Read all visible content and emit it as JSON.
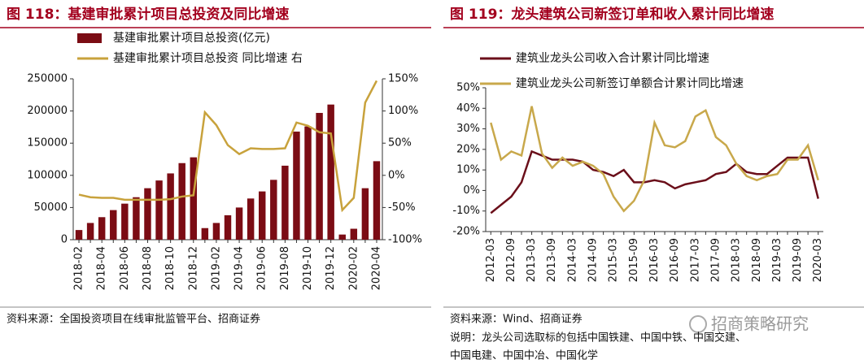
{
  "chart_data": [
    {
      "type": "bar",
      "title": "图 118：基建审批累计项目总投资及同比增速",
      "categories": [
        "2018-02",
        null,
        "2018-04",
        null,
        "2018-06",
        null,
        "2018-08",
        null,
        "2018-10",
        null,
        "2018-12",
        null,
        "2019-02",
        null,
        "2019-04",
        null,
        "2019-06",
        null,
        "2019-08",
        null,
        "2019-10",
        null,
        "2019-12",
        null,
        "2020-02",
        null,
        "2020-04"
      ],
      "series": [
        {
          "name": "基建审批累计项目总投资(亿元)",
          "type": "bar",
          "color": "#7b0c14",
          "values": [
            15000,
            26000,
            35000,
            46000,
            56000,
            66000,
            80000,
            92000,
            103000,
            119000,
            128000,
            18000,
            26000,
            38000,
            50000,
            64000,
            75000,
            93000,
            115000,
            168000,
            176000,
            197000,
            210000,
            8000,
            17000,
            80000,
            122000
          ]
        },
        {
          "name": "基建审批累计项目总投资 同比增速 右",
          "type": "line",
          "axis": "y2",
          "color": "#c8a23c",
          "values": [
            -30,
            -34,
            -35,
            -35,
            -38,
            -38,
            -38,
            -38,
            -37,
            -33,
            -31,
            98,
            78,
            47,
            33,
            42,
            41,
            41,
            42,
            82,
            77,
            67,
            65,
            -54,
            -35,
            113,
            147
          ]
        }
      ],
      "ylim": [
        0,
        250000
      ],
      "yticks": [
        0,
        50000,
        100000,
        150000,
        200000,
        250000
      ],
      "y2lim": [
        -100,
        150
      ],
      "y2ticks": [
        {
          "value": -100,
          "label": "-100%"
        },
        {
          "value": -50,
          "label": "-50%"
        },
        {
          "value": 0,
          "label": "0%"
        },
        {
          "value": 50,
          "label": "50%"
        },
        {
          "value": 100,
          "label": "100%"
        },
        {
          "value": 150,
          "label": "150%"
        }
      ],
      "source": "资料来源：全国投资项目在线审批监管平台、招商证券"
    },
    {
      "type": "line",
      "title": "图 119：龙头建筑公司新签订单和收入累计同比增速",
      "categories": [
        "2012-03",
        null,
        "2012-09",
        null,
        "2013-03",
        null,
        "2013-09",
        null,
        "2014-03",
        null,
        "2014-09",
        null,
        "2015-03",
        null,
        "2015-09",
        null,
        "2016-03",
        null,
        "2016-09",
        null,
        "2017-03",
        null,
        "2017-09",
        null,
        "2018-03",
        null,
        "2018-09",
        null,
        "2019-03",
        null,
        "2019-09",
        null,
        "2020-03"
      ],
      "series": [
        {
          "name": "建筑业龙头公司收入合计累计同比增速",
          "color": "#6b0f1a",
          "values": [
            -11,
            -7,
            -3,
            4,
            19,
            17,
            15,
            15,
            15,
            14,
            10,
            9,
            7,
            10,
            4,
            4,
            5,
            4,
            1,
            3,
            4,
            5,
            8,
            9,
            13,
            9,
            8,
            8,
            12,
            16,
            16,
            16,
            -4
          ]
        },
        {
          "name": "建筑业龙头公司新签订单额合计累计同比增速",
          "color": "#c8a84b",
          "values": [
            33,
            15,
            19,
            17,
            41,
            18,
            11,
            16,
            12,
            14,
            12,
            8,
            -3,
            -10,
            -5,
            5,
            33,
            22,
            21,
            24,
            36,
            39,
            26,
            22,
            13,
            7,
            5,
            7,
            8,
            15,
            15,
            22,
            5
          ]
        }
      ],
      "ylim": [
        -20,
        50
      ],
      "yticks": [
        {
          "value": -20,
          "label": "-20%"
        },
        {
          "value": -10,
          "label": "-10%"
        },
        {
          "value": 0,
          "label": "0%"
        },
        {
          "value": 10,
          "label": "10%"
        },
        {
          "value": 20,
          "label": "20%"
        },
        {
          "value": 30,
          "label": "30%"
        },
        {
          "value": 40,
          "label": "40%"
        },
        {
          "value": 50,
          "label": "50%"
        }
      ],
      "source": "资料来源：Wind、招商证券",
      "note": [
        "说明：龙头公司选取标的包括中国铁建、中国中铁、中国交建、",
        "中国电建、中国中冶、中国化学"
      ]
    }
  ],
  "watermark": "招商策略研究"
}
